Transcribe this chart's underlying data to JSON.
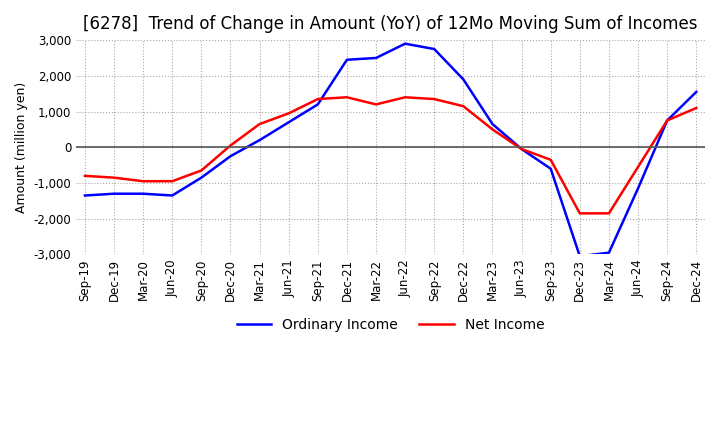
{
  "title": "[6278]  Trend of Change in Amount (YoY) of 12Mo Moving Sum of Incomes",
  "ylabel": "Amount (million yen)",
  "ylim": [
    -3000,
    3000
  ],
  "yticks": [
    -3000,
    -2000,
    -1000,
    0,
    1000,
    2000,
    3000
  ],
  "x_labels": [
    "Sep-19",
    "Dec-19",
    "Mar-20",
    "Jun-20",
    "Sep-20",
    "Dec-20",
    "Mar-21",
    "Jun-21",
    "Sep-21",
    "Dec-21",
    "Mar-22",
    "Jun-22",
    "Sep-22",
    "Dec-22",
    "Mar-23",
    "Jun-23",
    "Sep-23",
    "Dec-23",
    "Mar-24",
    "Jun-24",
    "Sep-24",
    "Dec-24"
  ],
  "ordinary_income": [
    -1350,
    -1300,
    -1300,
    -1350,
    -850,
    -250,
    200,
    700,
    1200,
    2450,
    2500,
    2900,
    2750,
    1900,
    650,
    -50,
    -600,
    -3050,
    -2950,
    -1150,
    750,
    1550
  ],
  "net_income": [
    -800,
    -850,
    -950,
    -950,
    -650,
    50,
    650,
    950,
    1350,
    1400,
    1200,
    1400,
    1350,
    1150,
    500,
    -50,
    -350,
    -1850,
    -1850,
    -550,
    750,
    1100
  ],
  "ordinary_income_color": "#0000ff",
  "net_income_color": "#ff0000",
  "grid_color": "#aaaaaa",
  "zero_line_color": "#555555",
  "background_color": "#ffffff",
  "title_fontsize": 12,
  "label_fontsize": 9,
  "tick_fontsize": 8.5,
  "legend_fontsize": 10
}
